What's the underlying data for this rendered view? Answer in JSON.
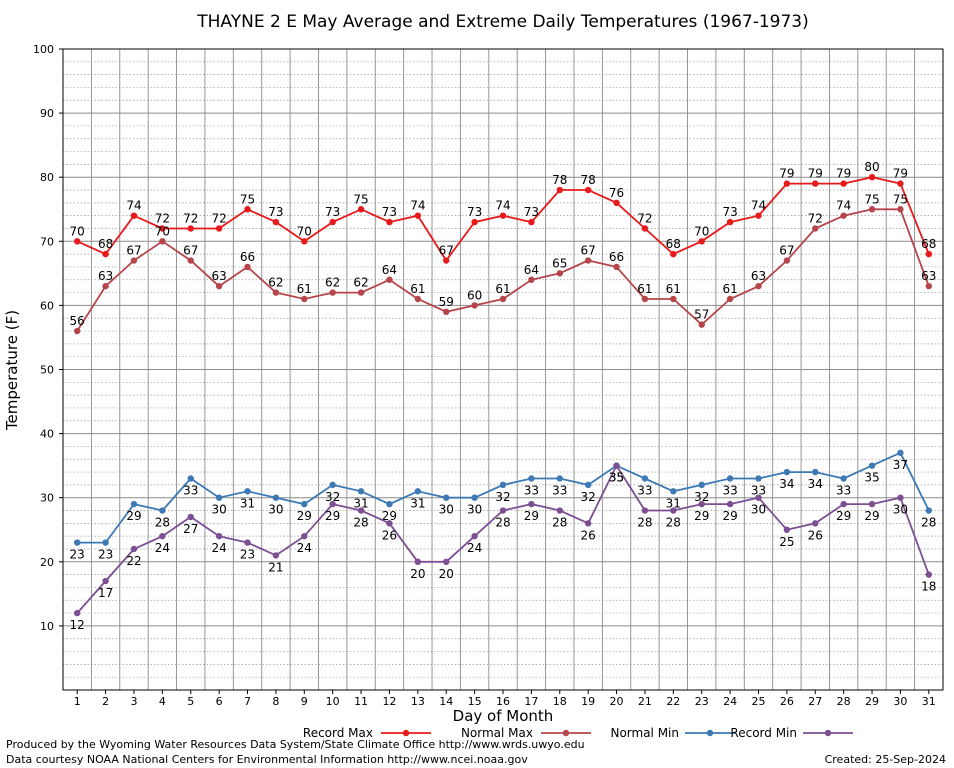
{
  "chart_data": {
    "type": "line",
    "title": "THAYNE 2 E May Average and Extreme Daily Temperatures (1967-1973)",
    "xlabel": "Day of Month",
    "ylabel": "Temperature (F)",
    "ylim": [
      0,
      100
    ],
    "y_ticks": [
      "10",
      "20",
      "30",
      "40",
      "50",
      "60",
      "70",
      "80",
      "90",
      "100"
    ],
    "x": [
      "1",
      "2",
      "3",
      "4",
      "5",
      "6",
      "7",
      "8",
      "9",
      "10",
      "11",
      "12",
      "13",
      "14",
      "15",
      "16",
      "17",
      "18",
      "19",
      "20",
      "21",
      "22",
      "23",
      "24",
      "25",
      "26",
      "27",
      "28",
      "29",
      "30",
      "31"
    ],
    "grid": true,
    "legend_position": "bottom",
    "series": [
      {
        "name": "Record Max",
        "color": "#e8191b",
        "label_pos": "above",
        "values": [
          70,
          68,
          74,
          72,
          72,
          72,
          75,
          73,
          70,
          73,
          75,
          73,
          74,
          67,
          73,
          74,
          73,
          78,
          78,
          76,
          72,
          68,
          70,
          73,
          74,
          79,
          79,
          79,
          80,
          79,
          68
        ]
      },
      {
        "name": "Normal Max",
        "color": "#b5454a",
        "label_pos": "above",
        "values": [
          56,
          63,
          67,
          70,
          67,
          63,
          66,
          62,
          61,
          62,
          62,
          64,
          61,
          59,
          60,
          61,
          64,
          65,
          67,
          66,
          61,
          61,
          57,
          61,
          63,
          67,
          72,
          74,
          75,
          75,
          63
        ]
      },
      {
        "name": "Normal Min",
        "color": "#3d79b5",
        "label_pos": "below",
        "values": [
          23,
          23,
          29,
          28,
          33,
          30,
          31,
          30,
          29,
          32,
          31,
          29,
          31,
          30,
          30,
          32,
          33,
          33,
          32,
          35,
          33,
          31,
          32,
          33,
          33,
          34,
          34,
          33,
          35,
          37,
          28
        ]
      },
      {
        "name": "Record Min",
        "color": "#7b4f92",
        "label_pos": "below",
        "values": [
          12,
          17,
          22,
          24,
          27,
          24,
          23,
          21,
          24,
          29,
          28,
          26,
          20,
          20,
          24,
          28,
          29,
          28,
          26,
          35,
          28,
          28,
          29,
          29,
          30,
          25,
          26,
          29,
          29,
          30,
          18
        ]
      }
    ]
  },
  "footer": {
    "credit_1": "Produced by the Wyoming Water Resources Data System/State Climate Office http://www.wrds.uwyo.edu",
    "credit_2": "Data courtesy NOAA National Centers for Environmental Information http://www.ncei.noaa.gov",
    "created": "Created:  25-Sep-2024"
  }
}
